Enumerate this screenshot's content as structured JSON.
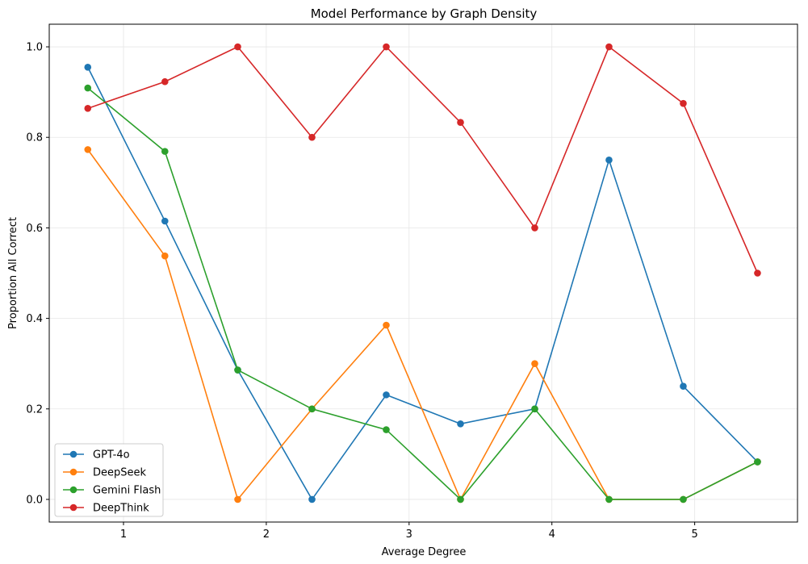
{
  "chart_data": {
    "type": "line",
    "title": "Model Performance by Graph Density",
    "xlabel": "Average Degree",
    "ylabel": "Proportion All Correct",
    "xlim": [
      0.48,
      5.72
    ],
    "ylim": [
      -0.05,
      1.05
    ],
    "x_ticks": [
      1,
      2,
      3,
      4,
      5
    ],
    "y_ticks": [
      0.0,
      0.2,
      0.4,
      0.6,
      0.8,
      1.0
    ],
    "x_tick_labels": [
      "1",
      "2",
      "3",
      "4",
      "5"
    ],
    "y_tick_labels": [
      "0.0",
      "0.2",
      "0.4",
      "0.6",
      "0.8",
      "1.0"
    ],
    "grid": true,
    "legend_position": "lower-left",
    "x": [
      0.75,
      1.29,
      1.8,
      2.32,
      2.84,
      3.36,
      3.88,
      4.4,
      4.92,
      5.44
    ],
    "series": [
      {
        "name": "GPT-4o",
        "color": "#1f77b4",
        "values": [
          0.955,
          0.615,
          0.286,
          0.0,
          0.231,
          0.167,
          0.2,
          0.75,
          0.25,
          0.083
        ]
      },
      {
        "name": "DeepSeek",
        "color": "#ff7f0e",
        "values": [
          0.773,
          0.538,
          0.0,
          0.2,
          0.385,
          0.0,
          0.3,
          0.0,
          0.0,
          0.083
        ]
      },
      {
        "name": "Gemini Flash",
        "color": "#2ca02c",
        "values": [
          0.909,
          0.769,
          0.286,
          0.2,
          0.154,
          0.0,
          0.2,
          0.0,
          0.0,
          0.083
        ]
      },
      {
        "name": "DeepThink",
        "color": "#d62728",
        "values": [
          0.864,
          0.923,
          1.0,
          0.8,
          1.0,
          0.833,
          0.6,
          1.0,
          0.875,
          0.5
        ]
      }
    ]
  }
}
